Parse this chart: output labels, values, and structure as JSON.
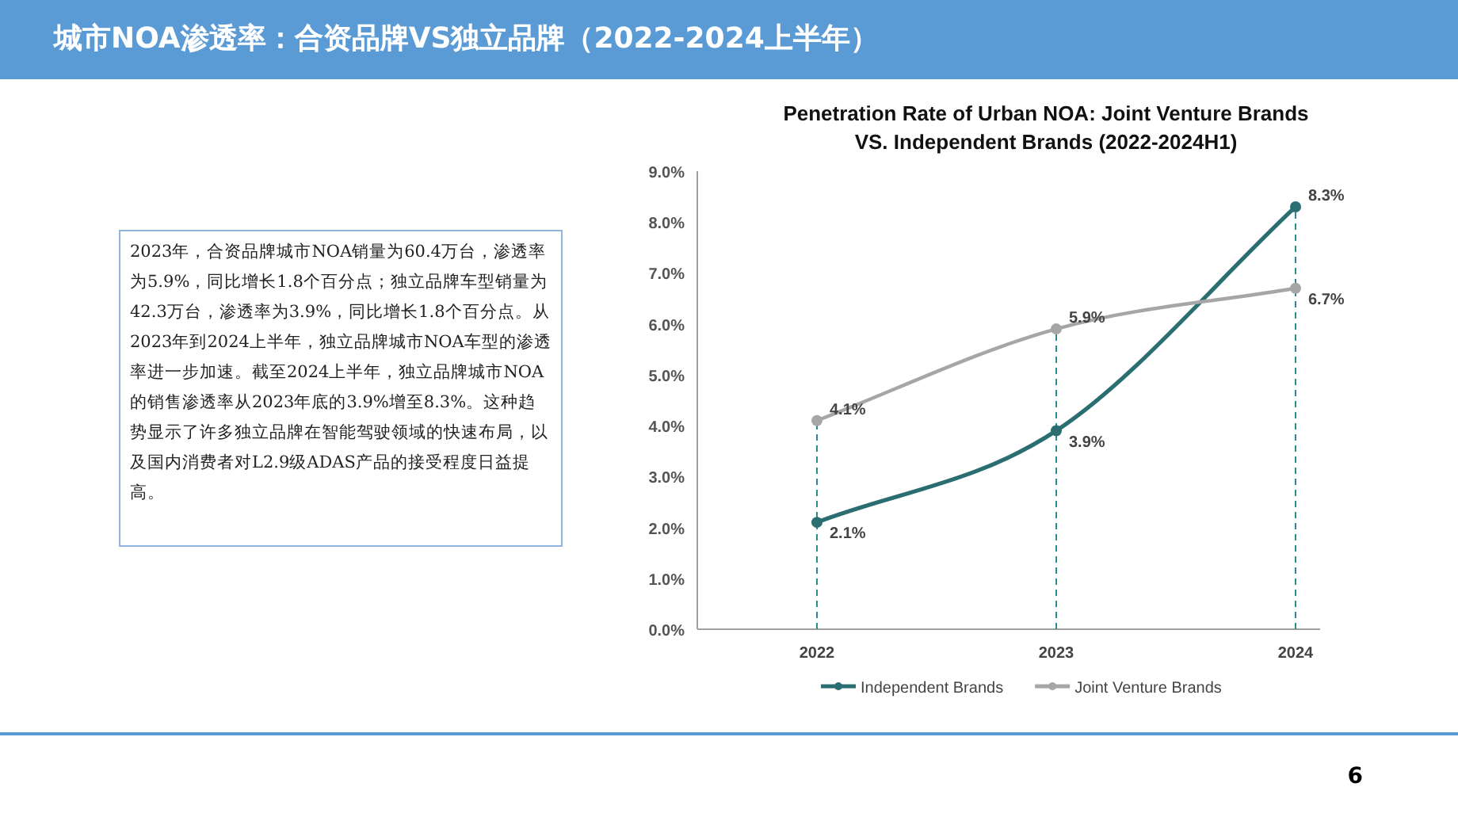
{
  "chart_data": {
    "type": "line",
    "title": "城市NOA渗透率：合资品牌VS独立品牌（2022-2024上半年）",
    "subtitle": "Penetration Rate of Urban NOA: Joint Venture Brands VS. Independent Brands (2022-2024H1)",
    "categories": [
      "2022",
      "2023",
      "2024"
    ],
    "series": [
      {
        "name": "Independent Brands",
        "color": "#2b6e72",
        "values": [
          2.1,
          3.9,
          8.3
        ],
        "value_labels": [
          "2.1%",
          "3.9%",
          "8.3%"
        ]
      },
      {
        "name": "Joint Venture Brands",
        "color": "#a6a6a6",
        "values": [
          4.1,
          5.9,
          6.7
        ],
        "value_labels": [
          "4.1%",
          "5.9%",
          "6.7%"
        ]
      }
    ],
    "ylim": [
      0,
      9
    ],
    "yticks": [
      {
        "value": 0,
        "label": "0.0%"
      },
      {
        "value": 1,
        "label": "1.0%"
      },
      {
        "value": 2,
        "label": "2.0%"
      },
      {
        "value": 3,
        "label": "3.0%"
      },
      {
        "value": 4,
        "label": "4.0%"
      },
      {
        "value": 5,
        "label": "5.0%"
      },
      {
        "value": 6,
        "label": "6.0%"
      },
      {
        "value": 7,
        "label": "7.0%"
      },
      {
        "value": 8,
        "label": "8.0%"
      },
      {
        "value": 9,
        "label": "9.0%"
      }
    ],
    "ref_lines": [
      {
        "axis": "x",
        "value": "2022",
        "color": "#2b8a96",
        "line_style": "dashed"
      },
      {
        "axis": "x",
        "value": "2023",
        "color": "#2b8a96",
        "line_style": "dashed"
      },
      {
        "axis": "x",
        "value": "2024",
        "color": "#2b8a96",
        "line_style": "dashed"
      }
    ],
    "marker": "circle",
    "line_style": "solid",
    "grid": false,
    "legend": "bottom",
    "annotations": [
      "2023年，合资品牌城市NOA销量为60.4万台，渗透率为5.9%，同比增长1.8个百分点；独立品牌车型销量为42.3万台，渗透率为3.9%，同比增长1.8个百分点。从2023年到2024上半年，独立品牌城市NOA车型的渗透率进一步加速。截至2024上半年，独立品牌城市NOA的销售渗透率从2023年底的3.9%增至8.3%。这种趋势显示了许多独立品牌在智能驾驶领域的快速布局，以及国内消费者对L2.9级ADAS产品的接受程度日益提高。",
      "6"
    ]
  }
}
